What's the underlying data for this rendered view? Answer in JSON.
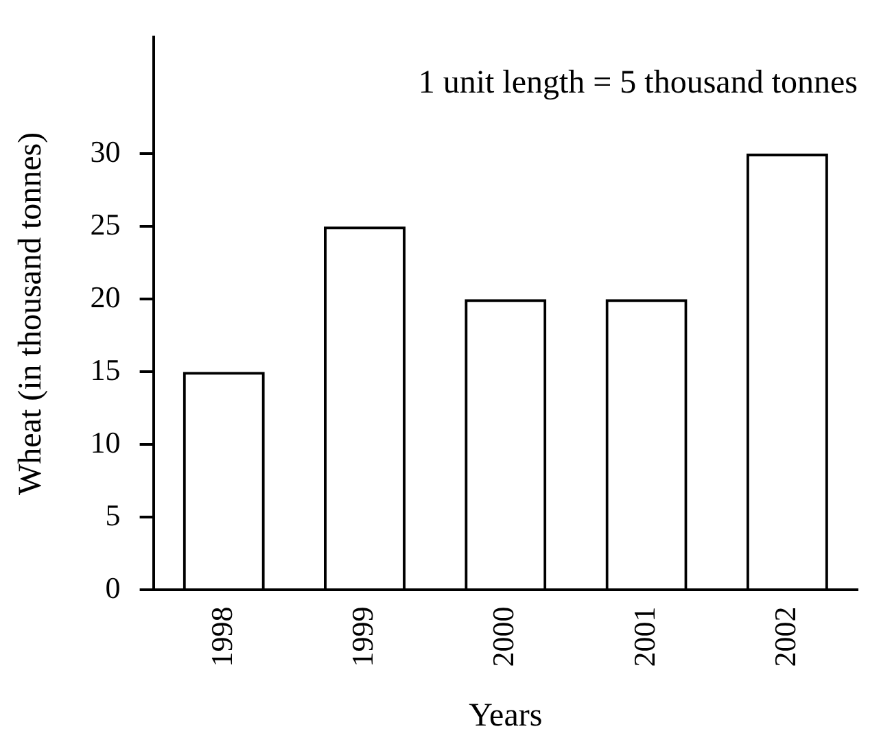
{
  "chart_data": {
    "type": "bar",
    "xlabel": "Years",
    "ylabel": "Wheat (in thousand tonnes)",
    "categories": [
      "1998",
      "1999",
      "2000",
      "2001",
      "2002"
    ],
    "values": [
      15,
      25,
      20,
      20,
      30
    ],
    "color": "#000000",
    "ylim": [
      0,
      38
    ],
    "yticks": [
      0,
      5,
      10,
      15,
      20,
      25,
      30
    ],
    "grid": false,
    "legend": false,
    "annotations": [
      "1 unit length = 5 thousand tonnes"
    ]
  }
}
